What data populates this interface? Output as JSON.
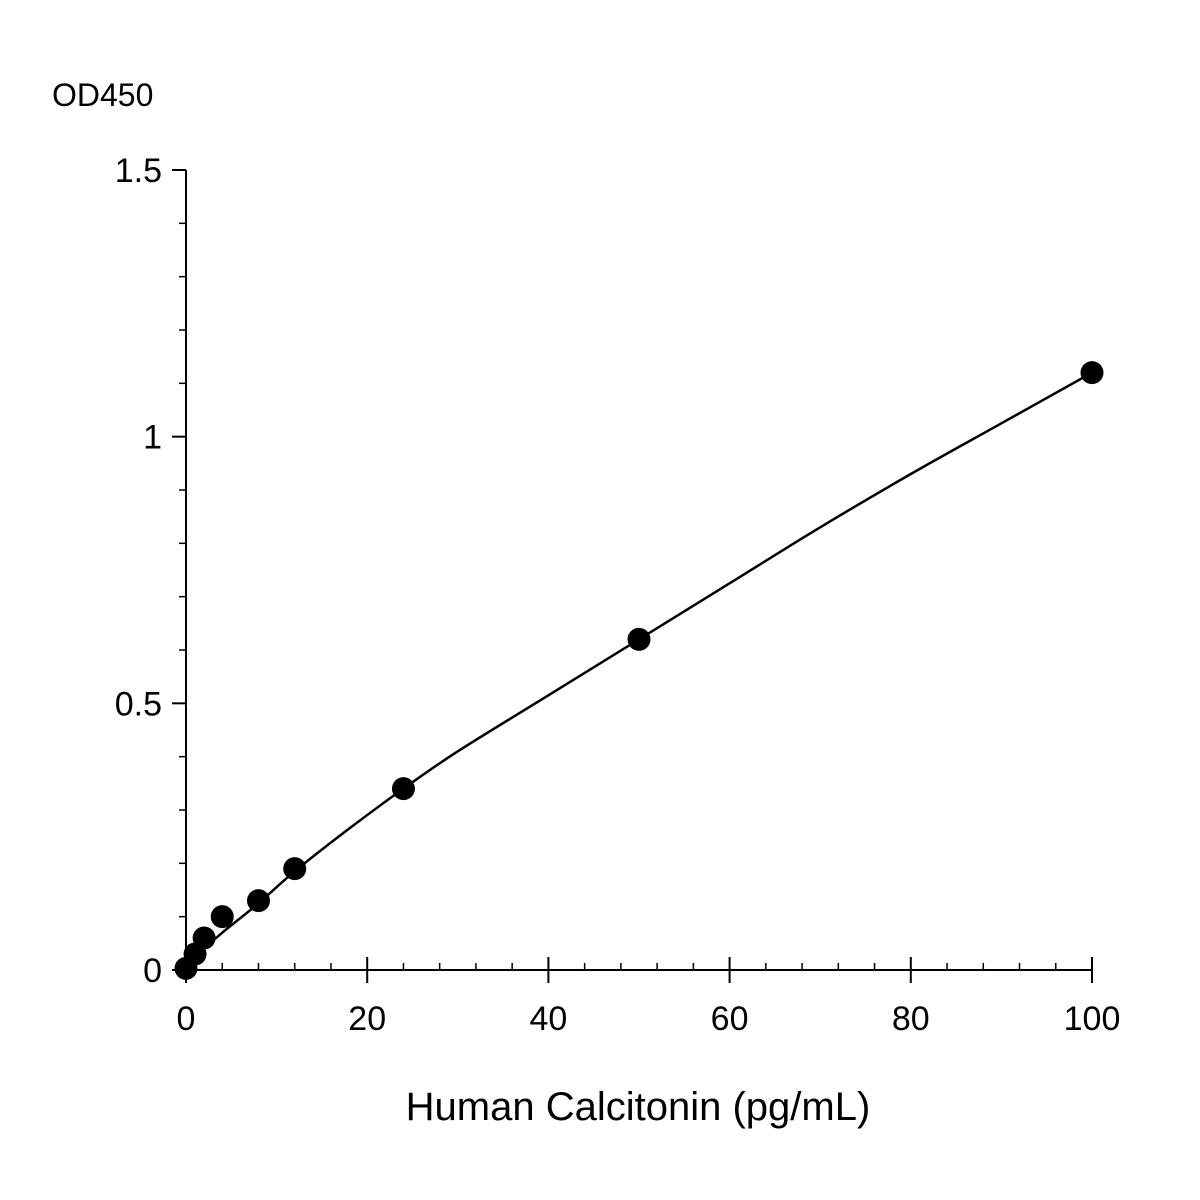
{
  "chart_data": {
    "type": "scatter",
    "title": "",
    "xlabel": "Human Calcitonin (pg/mL)",
    "ylabel": "OD450",
    "xlim": [
      0,
      100
    ],
    "ylim": [
      0,
      1.5
    ],
    "x_ticks": [
      0,
      20,
      40,
      60,
      80,
      100
    ],
    "x_tick_labels": [
      "0",
      "20",
      "40",
      "60",
      "80",
      "100"
    ],
    "y_ticks": [
      0,
      0.5,
      1,
      1.5
    ],
    "y_tick_labels": [
      "0",
      "0.5",
      "1",
      "1.5"
    ],
    "x_minor_step": 4,
    "y_minor_step": 0.1,
    "grid": false,
    "legend": "none",
    "colors": {
      "marker": "#000000",
      "line": "#000000",
      "axis": "#000000"
    },
    "series": [
      {
        "points": [
          {
            "x": 0,
            "y": 0.003
          },
          {
            "x": 1,
            "y": 0.03
          },
          {
            "x": 2,
            "y": 0.06
          },
          {
            "x": 4,
            "y": 0.1
          },
          {
            "x": 8,
            "y": 0.13
          },
          {
            "x": 12,
            "y": 0.19
          },
          {
            "x": 24,
            "y": 0.34
          },
          {
            "x": 50,
            "y": 0.62
          },
          {
            "x": 100,
            "y": 1.12
          }
        ]
      }
    ],
    "fit_curve": {
      "points": [
        [
          0,
          0.003
        ],
        [
          1,
          0.023
        ],
        [
          2,
          0.04
        ],
        [
          4,
          0.07
        ],
        [
          8,
          0.125
        ],
        [
          12,
          0.185
        ],
        [
          18,
          0.265
        ],
        [
          24,
          0.34
        ],
        [
          30,
          0.41
        ],
        [
          40,
          0.515
        ],
        [
          50,
          0.62
        ],
        [
          60,
          0.725
        ],
        [
          70,
          0.83
        ],
        [
          80,
          0.93
        ],
        [
          90,
          1.025
        ],
        [
          100,
          1.12
        ]
      ]
    }
  }
}
